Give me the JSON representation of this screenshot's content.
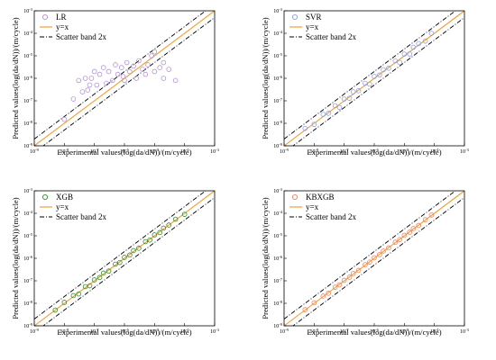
{
  "chart_data": [
    {
      "type": "scatter",
      "series": [
        {
          "name": "LR",
          "color": "#b48fd6",
          "marker": "open-circle",
          "points": [
            [
              1e-08,
              1.5e-08
            ],
            [
              2e-08,
              1.2e-07
            ],
            [
              3e-08,
              8e-07
            ],
            [
              4e-08,
              2.5e-07
            ],
            [
              5e-08,
              1e-06
            ],
            [
              6e-08,
              3e-07
            ],
            [
              8e-08,
              1e-06
            ],
            [
              1e-07,
              2e-06
            ],
            [
              1.2e-07,
              5e-07
            ],
            [
              1.5e-07,
              1.5e-06
            ],
            [
              2e-07,
              3e-06
            ],
            [
              2.5e-07,
              6e-07
            ],
            [
              3e-07,
              2e-06
            ],
            [
              4e-07,
              8e-07
            ],
            [
              5e-07,
              4e-06
            ],
            [
              6e-07,
              1.5e-06
            ],
            [
              8e-07,
              3e-06
            ],
            [
              1e-06,
              8e-07
            ],
            [
              1.2e-06,
              5e-06
            ],
            [
              1.5e-06,
              2e-06
            ],
            [
              2e-06,
              3.5e-06
            ],
            [
              2.5e-06,
              1e-06
            ],
            [
              3e-06,
              6e-06
            ],
            [
              4e-06,
              2.5e-06
            ],
            [
              5e-06,
              1.5e-06
            ],
            [
              6e-06,
              4e-06
            ],
            [
              8e-06,
              1e-05
            ],
            [
              1e-05,
              2e-06
            ],
            [
              1.5e-05,
              3e-06
            ],
            [
              2e-05,
              1e-06
            ],
            [
              3e-05,
              2.5e-06
            ],
            [
              5e-05,
              8e-07
            ],
            [
              2e-05,
              5e-06
            ],
            [
              1e-05,
              1.5e-05
            ],
            [
              7e-08,
              5e-07
            ],
            [
              9e-07,
              1.2e-06
            ]
          ]
        },
        {
          "name": "y=x",
          "color": "#f0a030",
          "line": [
            [
              1e-09,
              1e-09
            ],
            [
              0.001,
              0.001
            ]
          ]
        },
        {
          "name": "Scatter band 2x",
          "color": "#000000",
          "factor": 2
        }
      ],
      "xlabel": "Experimental values(log(da/dN))/(m/cycle)",
      "ylabel": "Predicted values(log(da/dN))/(m/cycle)",
      "xlim": [
        1e-09,
        0.001
      ],
      "ylim": [
        1e-09,
        0.001
      ],
      "xticks": [
        "10-9",
        "10-8",
        "10-7",
        "10-6",
        "10-5",
        "10-4",
        "10-3"
      ],
      "yticks": [
        "10-9",
        "10-8",
        "10-7",
        "10-6",
        "10-5",
        "10-4",
        "10-3"
      ],
      "scale": "log",
      "legend": "top-left"
    },
    {
      "type": "scatter",
      "series": [
        {
          "name": "SVR",
          "color": "#8b9fe8",
          "marker": "open-circle",
          "points": [
            [
              5e-09,
              6e-09
            ],
            [
              1e-08,
              9e-09
            ],
            [
              2e-08,
              2.5e-08
            ],
            [
              3e-08,
              2.8e-08
            ],
            [
              5e-08,
              6e-08
            ],
            [
              7e-08,
              5e-08
            ],
            [
              1e-07,
              1.2e-07
            ],
            [
              1.5e-07,
              1.3e-07
            ],
            [
              2e-07,
              2.5e-07
            ],
            [
              3e-07,
              2.8e-07
            ],
            [
              5e-07,
              6e-07
            ],
            [
              7e-07,
              5.5e-07
            ],
            [
              1e-06,
              1.2e-06
            ],
            [
              1.5e-06,
              1.4e-06
            ],
            [
              2e-06,
              2.4e-06
            ],
            [
              3e-06,
              2.8e-06
            ],
            [
              5e-06,
              6e-06
            ],
            [
              7e-06,
              5e-06
            ],
            [
              1e-05,
              1.2e-05
            ],
            [
              1.5e-05,
              1.2e-05
            ],
            [
              2e-05,
              2.4e-05
            ],
            [
              3e-05,
              3.5e-05
            ],
            [
              5e-05,
              4.5e-05
            ],
            [
              8e-05,
              0.0001
            ]
          ]
        },
        {
          "name": "y=x",
          "color": "#f0a030",
          "line": [
            [
              1e-09,
              1e-09
            ],
            [
              0.001,
              0.001
            ]
          ]
        },
        {
          "name": "Scatter band 2x",
          "color": "#000000",
          "factor": 2
        }
      ],
      "xlabel": "Experimental values(log(da/dN))/(m/cycle)",
      "ylabel": "Predicted values(log(da/dN))/(m/cycle)",
      "xlim": [
        1e-09,
        0.001
      ],
      "ylim": [
        1e-09,
        0.001
      ],
      "xticks": [
        "10-9",
        "10-8",
        "10-7",
        "10-6",
        "10-5",
        "10-4",
        "10-3"
      ],
      "yticks": [
        "10-9",
        "10-8",
        "10-7",
        "10-6",
        "10-5",
        "10-4",
        "10-3"
      ],
      "scale": "log",
      "legend": "top-left"
    },
    {
      "type": "scatter",
      "series": [
        {
          "name": "XGB",
          "color": "#2e8b2e",
          "marker": "open-circle",
          "points": [
            [
              5e-09,
              5e-09
            ],
            [
              1e-08,
              1.1e-08
            ],
            [
              2e-08,
              2.2e-08
            ],
            [
              3e-08,
              2.6e-08
            ],
            [
              5e-08,
              5.5e-08
            ],
            [
              7e-08,
              6e-08
            ],
            [
              1e-07,
              1.1e-07
            ],
            [
              1.5e-07,
              1.4e-07
            ],
            [
              2e-07,
              2.2e-07
            ],
            [
              3e-07,
              2.7e-07
            ],
            [
              5e-07,
              5.5e-07
            ],
            [
              7e-07,
              6.5e-07
            ],
            [
              1e-06,
              1.1e-06
            ],
            [
              1.5e-06,
              1.4e-06
            ],
            [
              2e-06,
              2.2e-06
            ],
            [
              3e-06,
              2.8e-06
            ],
            [
              5e-06,
              5.5e-06
            ],
            [
              7e-06,
              6.5e-06
            ],
            [
              1e-05,
              1.1e-05
            ],
            [
              1.5e-05,
              1.4e-05
            ],
            [
              2e-05,
              2.2e-05
            ],
            [
              3e-05,
              3e-05
            ],
            [
              5e-05,
              5.5e-05
            ],
            [
              0.0001,
              9e-05
            ]
          ]
        },
        {
          "name": "y=x",
          "color": "#f0a030",
          "line": [
            [
              1e-09,
              1e-09
            ],
            [
              0.001,
              0.001
            ]
          ]
        },
        {
          "name": "Scatter band 2x",
          "color": "#000000",
          "factor": 2
        }
      ],
      "xlabel": "Experimental values(log(da/dN))/(m/cycle)",
      "ylabel": "Predicted values(log(da/dN))/(m/cycle)",
      "xlim": [
        1e-09,
        0.001
      ],
      "ylim": [
        1e-09,
        0.001
      ],
      "xticks": [
        "10-9",
        "10-8",
        "10-7",
        "10-6",
        "10-5",
        "10-4",
        "10-3"
      ],
      "yticks": [
        "10-9",
        "10-8",
        "10-7",
        "10-6",
        "10-5",
        "10-4",
        "10-3"
      ],
      "scale": "log",
      "legend": "top-left"
    },
    {
      "type": "scatter",
      "series": [
        {
          "name": "KBXGB",
          "color": "#f08060",
          "marker": "open-circle",
          "points": [
            [
              5e-09,
              5.2e-09
            ],
            [
              1e-08,
              1.05e-08
            ],
            [
              2e-08,
              2.1e-08
            ],
            [
              3e-08,
              2.8e-08
            ],
            [
              5e-08,
              5.2e-08
            ],
            [
              7e-08,
              6.6e-08
            ],
            [
              1e-07,
              1.05e-07
            ],
            [
              1.5e-07,
              1.45e-07
            ],
            [
              2e-07,
              2.1e-07
            ],
            [
              3e-07,
              2.9e-07
            ],
            [
              5e-07,
              5.2e-07
            ],
            [
              7e-07,
              6.8e-07
            ],
            [
              1e-06,
              1.05e-06
            ],
            [
              1.5e-06,
              1.45e-06
            ],
            [
              2e-06,
              2.1e-06
            ],
            [
              3e-06,
              2.9e-06
            ],
            [
              5e-06,
              5.2e-06
            ],
            [
              7e-06,
              6.8e-06
            ],
            [
              1e-05,
              1.05e-05
            ],
            [
              1.5e-05,
              1.45e-05
            ],
            [
              2e-05,
              2.1e-05
            ],
            [
              3e-05,
              2.9e-05
            ],
            [
              5e-05,
              5.2e-05
            ],
            [
              8e-05,
              8.4e-05
            ]
          ]
        },
        {
          "name": "y=x",
          "color": "#f0a030",
          "line": [
            [
              1e-09,
              1e-09
            ],
            [
              0.001,
              0.001
            ]
          ]
        },
        {
          "name": "Scatter band 2x",
          "color": "#000000",
          "factor": 2
        }
      ],
      "xlabel": "Experimental values(log(da/dN))/(m/cycle)",
      "ylabel": "Predicted values(log(da/dN))/(m/cycle)",
      "xlim": [
        1e-09,
        0.001
      ],
      "ylim": [
        1e-09,
        0.001
      ],
      "xticks": [
        "10-9",
        "10-8",
        "10-7",
        "10-6",
        "10-5",
        "10-4",
        "10-3"
      ],
      "yticks": [
        "10-9",
        "10-8",
        "10-7",
        "10-6",
        "10-5",
        "10-4",
        "10-3"
      ],
      "scale": "log",
      "legend": "top-left"
    }
  ]
}
